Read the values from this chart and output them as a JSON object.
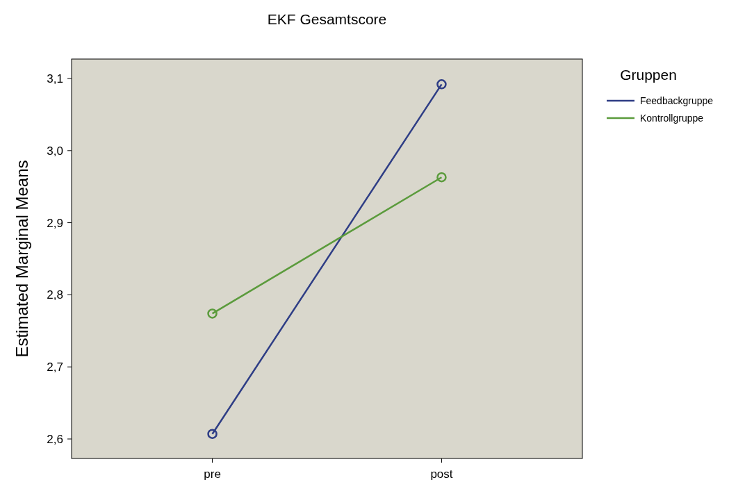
{
  "chart_data": {
    "type": "line",
    "title": "EKF Gesamtscore",
    "ylabel": "Estimated Marginal Means",
    "legend_title": "Gruppen",
    "categories": [
      "pre",
      "post"
    ],
    "series": [
      {
        "name": "Feedbackgruppe",
        "color": "#2e3d85",
        "values": [
          2.607,
          3.092
        ]
      },
      {
        "name": "Kontrollgruppe",
        "color": "#5b9b3c",
        "values": [
          2.774,
          2.963
        ]
      }
    ],
    "ylim": [
      2.573,
      3.127
    ],
    "yticks": [
      {
        "value": 2.6,
        "label": "2,6"
      },
      {
        "value": 2.7,
        "label": "2,7"
      },
      {
        "value": 2.8,
        "label": "2,8"
      },
      {
        "value": 2.9,
        "label": "2,9"
      },
      {
        "value": 3.0,
        "label": "3,0"
      },
      {
        "value": 3.1,
        "label": "3,1"
      }
    ],
    "grid": false,
    "legend": "top right",
    "marker": "circle",
    "line_style": "solid"
  }
}
